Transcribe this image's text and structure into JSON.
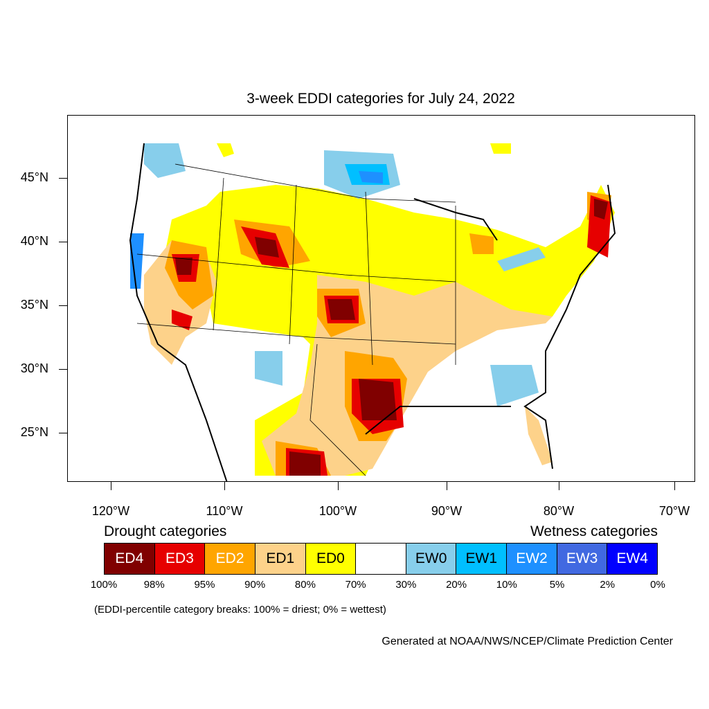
{
  "title": "3-week EDDI categories for July 24, 2022",
  "lat_labels": [
    "45°N",
    "40°N",
    "35°N",
    "30°N",
    "25°N"
  ],
  "lon_labels": [
    "120°W",
    "110°W",
    "100°W",
    "90°W",
    "80°W",
    "70°W"
  ],
  "legend": {
    "drought_heading": "Drought categories",
    "wetness_heading": "Wetness categories",
    "categories": [
      {
        "label": "ED4",
        "color": "#800000",
        "text_color": "#ffffff"
      },
      {
        "label": "ED3",
        "color": "#e60000",
        "text_color": "#ffffff"
      },
      {
        "label": "ED2",
        "color": "#ffa500",
        "text_color": "#ffffff"
      },
      {
        "label": "ED1",
        "color": "#fdd28a",
        "text_color": "#000000"
      },
      {
        "label": "ED0",
        "color": "#ffff00",
        "text_color": "#000000"
      },
      {
        "label": "",
        "color": "#ffffff",
        "text_color": "#000000"
      },
      {
        "label": "EW0",
        "color": "#87ceeb",
        "text_color": "#000000"
      },
      {
        "label": "EW1",
        "color": "#00bfff",
        "text_color": "#000000"
      },
      {
        "label": "EW2",
        "color": "#1e90ff",
        "text_color": "#ffffff"
      },
      {
        "label": "EW3",
        "color": "#4169e1",
        "text_color": "#ffffff"
      },
      {
        "label": "EW4",
        "color": "#0000ff",
        "text_color": "#ffffff"
      }
    ],
    "breaks": [
      "100%",
      "98%",
      "95%",
      "90%",
      "80%",
      "70%",
      "30%",
      "20%",
      "10%",
      "5%",
      "2%",
      "0%"
    ]
  },
  "note": "(EDDI-percentile category breaks: 100% = driest; 0% = wettest)",
  "credit": "Generated at NOAA/NWS/NCEP/Climate Prediction Center"
}
